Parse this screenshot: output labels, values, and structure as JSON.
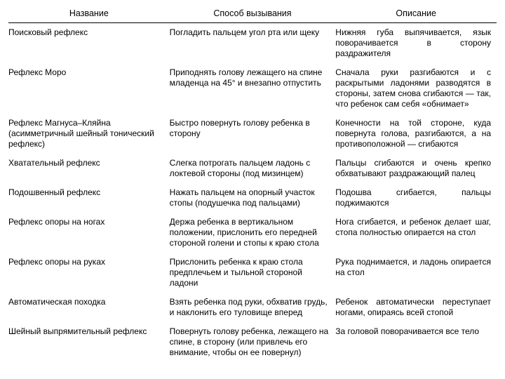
{
  "table": {
    "columns": [
      "Название",
      "Способ вызывания",
      "Описание"
    ],
    "rows": [
      {
        "name": "Поисковый рефлекс",
        "method": "Погладить пальцем угол рта или щеку",
        "desc": "Нижняя губа выпячивается, язык поворачивается в сторону раздражителя"
      },
      {
        "name": "Рефлекс Моро",
        "method": "Приподнять голову лежащего на спине младенца на 45° и внезапно отпустить",
        "desc": "Сначала руки разгибаются и с раскрытыми ладонями разводятся в стороны, затем снова сгибаются — так, что ребенок сам себя «обнимает»"
      },
      {
        "name": "Рефлекс Магнуса–Кляйна (асимметричный шейный тонический рефлекс)",
        "method": "Быстро повернуть голову ребенка в сторону",
        "desc": "Конечности на той стороне, куда повернута голова, разгибаются, а на противоположной — сгибаются"
      },
      {
        "name": "Хватательный рефлекс",
        "method": "Слегка потрогать пальцем ладонь с локтевой стороны (под мизинцем)",
        "desc": "Пальцы сгибаются и очень крепко обхватывают раздражающий палец"
      },
      {
        "name": "Подошвенный рефлекс",
        "method": "Нажать пальцем на опорный участок стопы (подушечка под пальцами)",
        "desc": "Подошва сгибается, пальцы поджимаются"
      },
      {
        "name": "Рефлекс опоры на ногах",
        "method": "Держа ребенка в вертикальном положении, прислонить его передней стороной голени и стопы к краю стола",
        "desc": "Нога сгибается, и ребенок делает шаг, стопа полностью опирается на стол"
      },
      {
        "name": "Рефлекс опоры на руках",
        "method": "Прислонить ребенка к краю стола предплечьем и тыльной стороной ладони",
        "desc": "Рука поднимается, и ладонь опирается на стол"
      },
      {
        "name": "Автоматическая походка",
        "method": "Взять ребенка под руки, обхватив грудь, и наклонить его туловище вперед",
        "desc": "Ребенок автоматически переступает ногами, опираясь всей стопой"
      },
      {
        "name": "Шейный выпрямительный рефлекс",
        "method": "Повернуть голову ребенка, лежащего на спине, в сторону (или привлечь его внимание, чтобы он ее повернул)",
        "desc": "За головой поворачивается все тело"
      }
    ]
  }
}
